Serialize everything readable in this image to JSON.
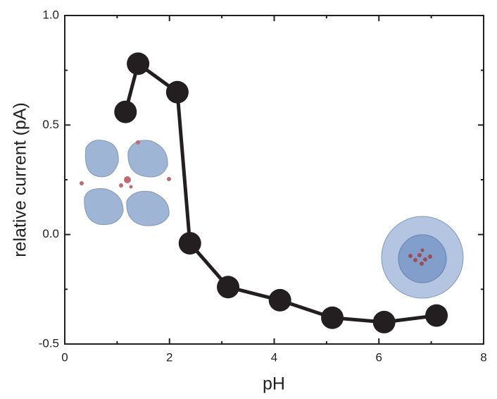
{
  "chart_data": {
    "type": "line",
    "x_label": "pH",
    "y_label": "relative current (pA)",
    "x": [
      1.16,
      1.4,
      2.15,
      2.39,
      3.12,
      4.11,
      5.11,
      6.1,
      7.1
    ],
    "series": [
      {
        "color": "#231f20",
        "values": [
          0.56,
          0.78,
          0.65,
          -0.04,
          -0.24,
          -0.3,
          -0.38,
          -0.4,
          -0.37
        ]
      }
    ],
    "xlim": [
      0,
      8
    ],
    "xticks": [
      0,
      2,
      4,
      6,
      8
    ],
    "xminorticks": [
      1,
      3,
      5,
      7
    ],
    "ylim": [
      -0.5,
      1.0
    ],
    "yticks": [
      -0.5,
      {
        "value": 0,
        "label": "0.0"
      },
      0.5,
      {
        "value": 1,
        "label": "1.0"
      }
    ],
    "yminorticks": [
      -0.25,
      0.25,
      0.75
    ]
  }
}
